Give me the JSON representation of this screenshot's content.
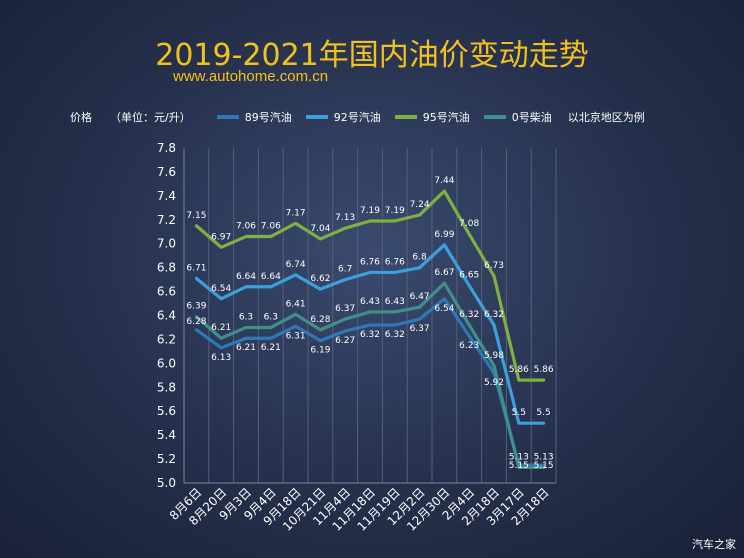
{
  "title": "2019-2021年国内油价变动走势",
  "subtitle_url": "www.autohome.com.cn",
  "legend_price_label": "价格",
  "legend_unit_label": "（单位：元/升）",
  "legend_note": "以北京地区为例",
  "watermark": "汽车之家",
  "colors": {
    "background": "#25304c",
    "title": "#f2c21b",
    "89": "#2f78b8",
    "92": "#3ba0dc",
    "95": "#7fb041",
    "0": "#3f8f8a"
  },
  "chart_data": {
    "type": "line",
    "title": "2019-2021年国内油价变动走势",
    "xlabel": "",
    "ylabel": "",
    "ylim": [
      5.0,
      7.8
    ],
    "yticks": [
      "7.8",
      "7.6",
      "7.4",
      "7.2",
      "7.0",
      "6.8",
      "6.6",
      "6.4",
      "6.2",
      "6.0",
      "5.8",
      "5.6",
      "5.4",
      "5.2",
      "5.0"
    ],
    "grid": "vertical",
    "legend_position": "top",
    "categories": [
      "8月6日",
      "8月20日",
      "9月3日",
      "9月4日",
      "9月18日",
      "10月21日",
      "11月4日",
      "11月18日",
      "11月19日",
      "12月2日",
      "12月30日",
      "2月4日",
      "2月18日",
      "3月17日",
      "2月18日"
    ],
    "series": [
      {
        "name": "89号汽油",
        "color": "#2f78b8",
        "values": [
          6.28,
          6.13,
          6.21,
          6.21,
          6.31,
          6.19,
          6.27,
          6.32,
          6.32,
          6.37,
          6.54,
          6.23,
          5.92,
          5.15,
          5.15
        ],
        "labels": [
          "6.28",
          "6.13",
          "6.21",
          "6.21",
          "6.31",
          "6.19",
          "6.27",
          "6.32",
          "6.32",
          "6.37",
          "6.54",
          "6.23",
          "5.92",
          "5.15",
          "5.15"
        ]
      },
      {
        "name": "92号汽油",
        "color": "#3ba0dc",
        "values": [
          6.71,
          6.54,
          6.64,
          6.64,
          6.74,
          6.62,
          6.7,
          6.76,
          6.76,
          6.8,
          6.99,
          6.65,
          6.32,
          5.5,
          5.5
        ],
        "labels": [
          "6.71",
          "6.54",
          "6.64",
          "6.64",
          "6.74",
          "6.62",
          "6.7",
          "6.76",
          "6.76",
          "6.8",
          "6.99",
          "6.65",
          "6.32",
          "5.5",
          "5.5"
        ]
      },
      {
        "name": "95号汽油",
        "color": "#7fb041",
        "values": [
          7.15,
          6.97,
          7.06,
          7.06,
          7.17,
          7.04,
          7.13,
          7.19,
          7.19,
          7.24,
          7.44,
          7.08,
          6.73,
          5.86,
          5.86
        ],
        "labels": [
          "7.15",
          "6.97",
          "7.06",
          "7.06",
          "7.17",
          "7.04",
          "7.13",
          "7.19",
          "7.19",
          "7.24",
          "7.44",
          "7.08",
          "6.73",
          "5.86",
          "5.86"
        ]
      },
      {
        "name": "0号柴油",
        "color": "#3f8f8a",
        "values": [
          6.39,
          6.21,
          6.3,
          6.3,
          6.41,
          6.28,
          6.37,
          6.43,
          6.43,
          6.47,
          6.67,
          6.32,
          5.98,
          5.13,
          5.13
        ],
        "labels": [
          "6.39",
          "6.21",
          "6.3",
          "6.3",
          "6.41",
          "6.28",
          "6.37",
          "6.43",
          "6.43",
          "6.47",
          "6.67",
          "6.32",
          "5.98",
          "5.13",
          "5.13"
        ]
      }
    ]
  }
}
